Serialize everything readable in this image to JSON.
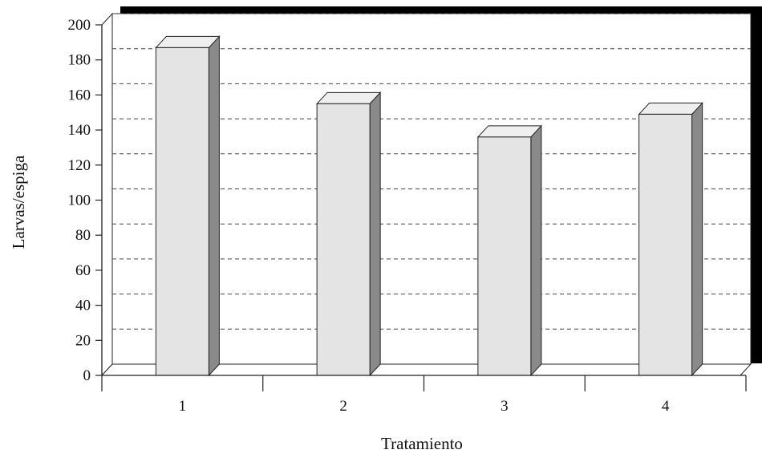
{
  "chart_data": {
    "type": "bar",
    "title": "",
    "xlabel": "Tratamiento",
    "ylabel": "Larvas/espiga",
    "categories": [
      "1",
      "2",
      "3",
      "4"
    ],
    "values": [
      187,
      155,
      136,
      149
    ],
    "ylim": [
      0,
      200
    ],
    "yticks": [
      0,
      20,
      40,
      60,
      80,
      100,
      120,
      140,
      160,
      180,
      200
    ],
    "grid": true,
    "grid_style": "dashed",
    "bar_style": "3d",
    "legend": "none"
  },
  "colors": {
    "bar_front": "#e4e4e4",
    "bar_top": "#efefef",
    "bar_side": "#8a8a8a",
    "grid": "#444444",
    "axis": "#222222",
    "backdrop_shadow": "#000000"
  }
}
